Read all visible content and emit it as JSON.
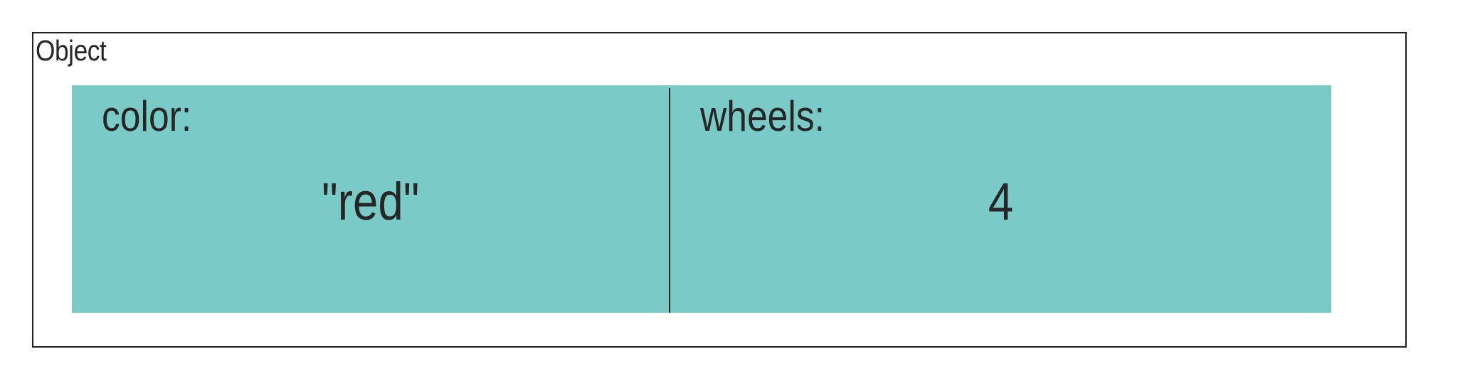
{
  "object": {
    "title": "Object",
    "properties": [
      {
        "key": "color:",
        "value": "\"red\""
      },
      {
        "key": "wheels:",
        "value": "4"
      }
    ]
  },
  "colors": {
    "accent": "#7acbc7",
    "border": "#1f1f1f",
    "text": "#262626"
  }
}
